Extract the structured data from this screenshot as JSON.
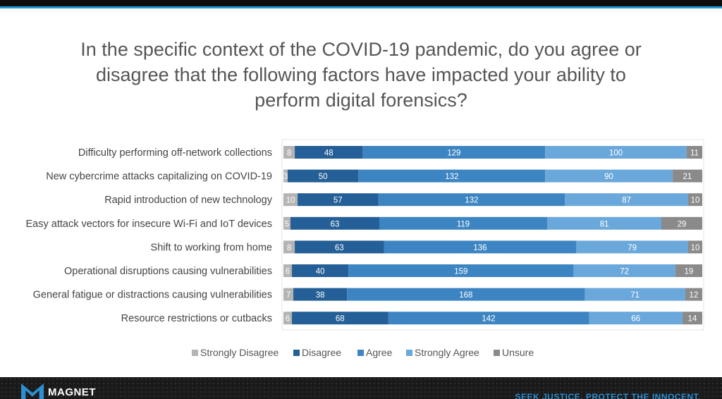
{
  "title_lines": [
    "In the specific context of the COVID-19 pandemic, do you agree or",
    "disagree that the following factors have impacted your ability to",
    "perform digital forensics?"
  ],
  "footer": {
    "logo_text": "MAGNET",
    "tagline": "SEEK JUSTICE. PROTECT THE INNOCENT."
  },
  "colors": {
    "strongly_disagree": "#b4b4b4",
    "disagree": "#245f97",
    "agree": "#3d85c2",
    "strongly_agree": "#6aa8db",
    "unsure": "#8a8a8a"
  },
  "chart_data": {
    "type": "bar",
    "orientation": "horizontal",
    "stacked": true,
    "categories": [
      "Difficulty performing off-network collections",
      "New cybercrime attacks capitalizing on COVID-19",
      "Rapid introduction of new technology",
      "Easy attack vectors for insecure Wi-Fi and IoT devices",
      "Shift to working from home",
      "Operational disruptions causing vulnerabilities",
      "General fatigue or distractions causing vulnerabilities",
      "Resource restrictions or cutbacks"
    ],
    "series": [
      {
        "name": "Strongly Disagree",
        "values": [
          8,
          3,
          10,
          5,
          8,
          6,
          7,
          6
        ]
      },
      {
        "name": "Disagree",
        "values": [
          48,
          50,
          57,
          63,
          63,
          40,
          38,
          68
        ]
      },
      {
        "name": "Agree",
        "values": [
          129,
          132,
          132,
          119,
          136,
          159,
          168,
          142
        ]
      },
      {
        "name": "Strongly Agree",
        "values": [
          100,
          90,
          87,
          81,
          79,
          72,
          71,
          66
        ]
      },
      {
        "name": "Unsure",
        "values": [
          11,
          21,
          10,
          29,
          10,
          19,
          12,
          14
        ]
      }
    ],
    "legend_position": "bottom",
    "grid": false
  }
}
